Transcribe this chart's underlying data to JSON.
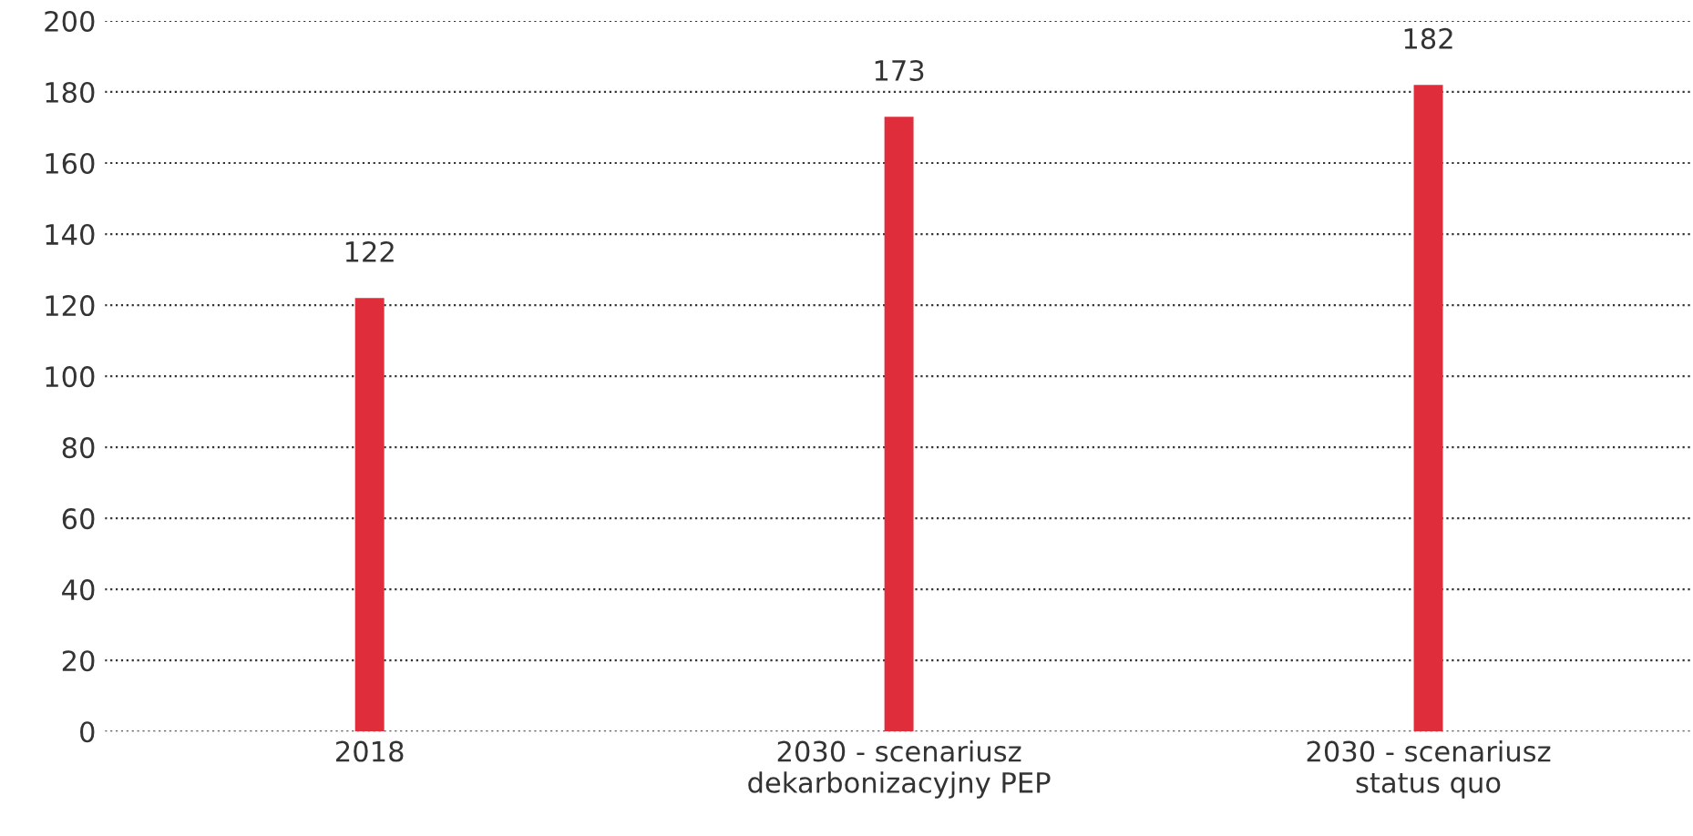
{
  "chart_data": {
    "type": "bar",
    "categories": [
      "2018",
      "2030 - scenariusz\ndekarbonizacyjny PEP",
      "2030 - scenariusz\nstatus quo"
    ],
    "values": [
      122,
      173,
      182
    ],
    "color": "#e02d3c",
    "ylim": [
      0,
      200
    ],
    "yticks": [
      0,
      20,
      40,
      60,
      80,
      100,
      120,
      140,
      160,
      180,
      200
    ],
    "grid": "y",
    "line_style": "dotted",
    "data_labels": true
  }
}
